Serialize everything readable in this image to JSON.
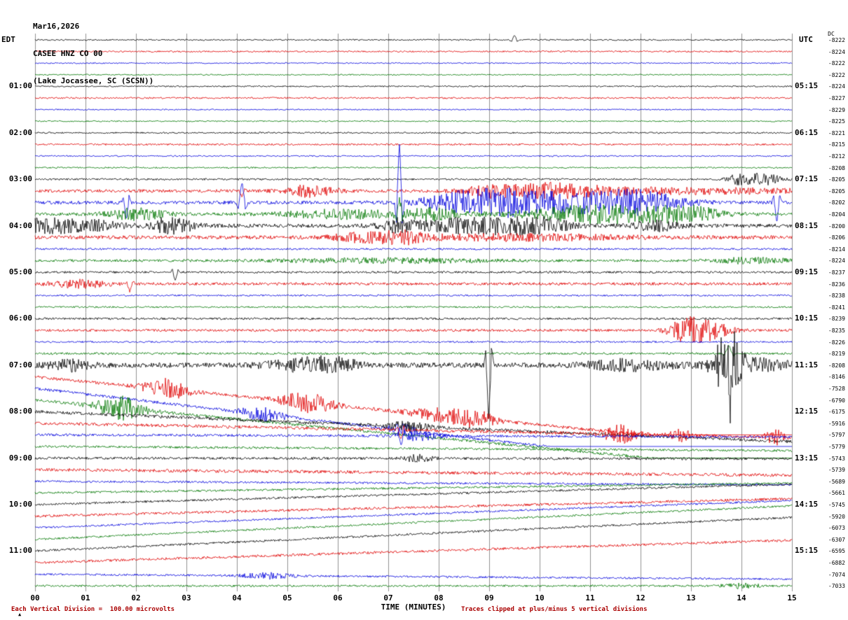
{
  "title": {
    "date": "Mar16,2026",
    "station": "CASEE HNZ CO 00",
    "location": "(Lake Jocassee, SC (SCSN))"
  },
  "axes": {
    "left_tz": "EDT",
    "right_tz": "UTC",
    "dc_header": "DC",
    "x_label": "TIME (MINUTES)",
    "x_ticks": [
      "00",
      "01",
      "02",
      "03",
      "04",
      "05",
      "06",
      "07",
      "08",
      "09",
      "10",
      "11",
      "12",
      "13",
      "14",
      "15"
    ]
  },
  "footer": {
    "left_note": "Each Vertical Division =  100.00 microvolts",
    "right_note": "Traces clipped at plus/minus 5 vertical divisions",
    "mark": "▲"
  },
  "colors": {
    "black": "#000000",
    "red": "#e00000",
    "blue": "#0000dd",
    "green": "#007700",
    "grid": "#909090",
    "note": "#aa0000"
  },
  "chart_data": {
    "type": "line",
    "title": "CASEE HNZ CO 00 (Lake Jocassee, SC (SCSN)) Mar16,2026",
    "xlabel": "TIME (MINUTES)",
    "x_range": [
      0,
      15
    ],
    "minutes_per_row": 15,
    "microvolts_per_division": 100,
    "clip_divisions": 5,
    "left_timezone": "EDT",
    "right_timezone": "UTC",
    "description": "Helicorder seismogram: 48 fifteen-minute traces (00:00-12:00 EDT), color cycle black/red/blue/green, DC offset per row at right. noise=trace fuzz amplitude px, drift=[start,end] px baseline ramp (down positive), events: s=burst (noisy envelope) or spike (impulse), m=minute, w=width min, a=amplitude px (positive down).",
    "rows": [
      {
        "t": "00:00",
        "color": "black",
        "dc": -8222,
        "noise": 1.0,
        "events": [
          {
            "m": 9.5,
            "w": 0.05,
            "a": -6,
            "s": "spike"
          }
        ]
      },
      {
        "t": "00:15",
        "color": "red",
        "dc": -8224,
        "noise": 1.1
      },
      {
        "t": "00:30",
        "color": "blue",
        "dc": -8222,
        "noise": 0.9
      },
      {
        "t": "00:45",
        "color": "green",
        "dc": -8222,
        "noise": 0.9
      },
      {
        "t": "01:00",
        "color": "black",
        "dc": -8224,
        "noise": 1.0,
        "left": "01:00",
        "right": "05:15"
      },
      {
        "t": "01:15",
        "color": "red",
        "dc": -8227,
        "noise": 1.2
      },
      {
        "t": "01:30",
        "color": "blue",
        "dc": -8229,
        "noise": 0.9
      },
      {
        "t": "01:45",
        "color": "green",
        "dc": -8225,
        "noise": 0.9
      },
      {
        "t": "02:00",
        "color": "black",
        "dc": -8221,
        "noise": 1.1,
        "left": "02:00",
        "right": "06:15"
      },
      {
        "t": "02:15",
        "color": "red",
        "dc": -8215,
        "noise": 1.3
      },
      {
        "t": "02:30",
        "color": "blue",
        "dc": -8212,
        "noise": 1.0
      },
      {
        "t": "02:45",
        "color": "green",
        "dc": -8208,
        "noise": 1.0
      },
      {
        "t": "03:00",
        "color": "black",
        "dc": -8205,
        "noise": 1.3,
        "left": "03:00",
        "right": "07:15",
        "events": [
          {
            "m": 13.9,
            "w": 0.15,
            "a": 6,
            "s": "burst"
          },
          {
            "m": 14.4,
            "w": 0.25,
            "a": 9,
            "s": "burst"
          }
        ]
      },
      {
        "t": "03:15",
        "color": "red",
        "dc": -8205,
        "noise": 2.2,
        "events": [
          {
            "m": 4.1,
            "w": 0.05,
            "a": 10,
            "s": "spike"
          },
          {
            "m": 5.45,
            "w": 0.35,
            "a": 8,
            "s": "burst"
          },
          {
            "m": 9.0,
            "w": 0.3,
            "a": 6,
            "s": "burst"
          },
          {
            "m": 10.2,
            "w": 0.7,
            "a": 9,
            "s": "burst"
          },
          {
            "m": 12.5,
            "w": 2.0,
            "a": 4,
            "s": "burst"
          }
        ]
      },
      {
        "t": "03:30",
        "color": "blue",
        "dc": -8202,
        "noise": 2.5,
        "events": [
          {
            "m": 1.81,
            "w": 0.05,
            "a": 25,
            "s": "spike"
          },
          {
            "m": 4.1,
            "w": 0.06,
            "a": -30,
            "s": "spike"
          },
          {
            "m": 7.22,
            "w": 0.05,
            "a": -90,
            "s": "spike"
          },
          {
            "m": 8.4,
            "w": 0.5,
            "a": 12,
            "s": "burst"
          },
          {
            "m": 9.3,
            "w": 0.4,
            "a": 10,
            "s": "burst"
          },
          {
            "m": 10.6,
            "w": 1.2,
            "a": 14,
            "s": "burst"
          },
          {
            "m": 12.0,
            "w": 0.5,
            "a": 10,
            "s": "burst"
          },
          {
            "m": 14.7,
            "w": 0.05,
            "a": 30,
            "s": "spike"
          }
        ]
      },
      {
        "t": "03:45",
        "color": "green",
        "dc": -8204,
        "noise": 2.2,
        "events": [
          {
            "m": 2.0,
            "w": 0.4,
            "a": 8,
            "s": "burst"
          },
          {
            "m": 6.1,
            "w": 0.8,
            "a": 6,
            "s": "burst"
          },
          {
            "m": 7.22,
            "w": 0.05,
            "a": -25,
            "s": "spike"
          },
          {
            "m": 7.9,
            "w": 0.4,
            "a": 8,
            "s": "burst"
          },
          {
            "m": 11.3,
            "w": 1.1,
            "a": 13,
            "s": "burst"
          },
          {
            "m": 13.0,
            "w": 0.4,
            "a": 8,
            "s": "burst"
          }
        ]
      },
      {
        "t": "04:00",
        "color": "black",
        "dc": -8200,
        "noise": 2.8,
        "left": "04:00",
        "right": "08:15",
        "events": [
          {
            "m": 0.3,
            "w": 0.5,
            "a": 10,
            "s": "burst"
          },
          {
            "m": 1.3,
            "w": 0.3,
            "a": 6,
            "s": "burst"
          },
          {
            "m": 2.7,
            "w": 0.3,
            "a": 12,
            "s": "burst"
          },
          {
            "m": 7.2,
            "w": 0.2,
            "a": 8,
            "s": "burst"
          },
          {
            "m": 8.8,
            "w": 0.9,
            "a": 11,
            "s": "burst"
          },
          {
            "m": 10.0,
            "w": 0.4,
            "a": 8,
            "s": "burst"
          },
          {
            "m": 12.3,
            "w": 0.3,
            "a": 7,
            "s": "burst"
          }
        ]
      },
      {
        "t": "04:15",
        "color": "red",
        "dc": -8206,
        "noise": 2.6,
        "events": [
          {
            "m": 6.5,
            "w": 0.4,
            "a": 6,
            "s": "burst"
          },
          {
            "m": 7.3,
            "w": 0.3,
            "a": 7,
            "s": "burst"
          },
          {
            "m": 9.5,
            "w": 1.5,
            "a": 4,
            "s": "burst"
          }
        ]
      },
      {
        "t": "04:30",
        "color": "blue",
        "dc": -8214,
        "noise": 1.4
      },
      {
        "t": "04:45",
        "color": "green",
        "dc": -8224,
        "noise": 1.8,
        "events": [
          {
            "m": 7.0,
            "w": 1.5,
            "a": 3,
            "s": "burst"
          },
          {
            "m": 14.2,
            "w": 0.5,
            "a": 4,
            "s": "burst"
          }
        ]
      },
      {
        "t": "05:00",
        "color": "black",
        "dc": -8237,
        "noise": 1.5,
        "left": "05:00",
        "right": "09:15",
        "events": [
          {
            "m": 2.78,
            "w": 0.05,
            "a": 13,
            "s": "spike"
          }
        ]
      },
      {
        "t": "05:15",
        "color": "red",
        "dc": -8236,
        "noise": 2.0,
        "events": [
          {
            "m": 0.9,
            "w": 0.4,
            "a": 5,
            "s": "burst"
          },
          {
            "m": 1.88,
            "w": 0.05,
            "a": 11,
            "s": "spike"
          }
        ]
      },
      {
        "t": "05:30",
        "color": "blue",
        "dc": -8238,
        "noise": 1.2
      },
      {
        "t": "05:45",
        "color": "green",
        "dc": -8241,
        "noise": 1.2
      },
      {
        "t": "06:00",
        "color": "black",
        "dc": -8239,
        "noise": 1.5,
        "left": "06:00",
        "right": "10:15"
      },
      {
        "t": "06:15",
        "color": "red",
        "dc": -8235,
        "noise": 1.8,
        "events": [
          {
            "m": 12.9,
            "w": 0.25,
            "a": 14,
            "s": "burst"
          },
          {
            "m": 13.35,
            "w": 0.3,
            "a": 12,
            "s": "burst"
          }
        ]
      },
      {
        "t": "06:30",
        "color": "blue",
        "dc": -8226,
        "noise": 1.2
      },
      {
        "t": "06:45",
        "color": "green",
        "dc": -8219,
        "noise": 1.6,
        "events": [
          {
            "m": 13.75,
            "w": 0.07,
            "a": -12,
            "s": "spike"
          }
        ]
      },
      {
        "t": "07:00",
        "color": "black",
        "dc": -8208,
        "noise": 3.5,
        "left": "07:00",
        "right": "11:15",
        "events": [
          {
            "m": 0.7,
            "w": 0.3,
            "a": 7,
            "s": "burst"
          },
          {
            "m": 5.3,
            "w": 0.5,
            "a": 9,
            "s": "burst"
          },
          {
            "m": 6.0,
            "w": 0.3,
            "a": 7,
            "s": "burst"
          },
          {
            "m": 8.99,
            "w": 0.05,
            "a": 80,
            "s": "spike"
          },
          {
            "m": 11.8,
            "w": 0.6,
            "a": 7,
            "s": "burst"
          },
          {
            "m": 13.72,
            "w": 0.18,
            "a": 45,
            "s": "burst"
          },
          {
            "m": 13.78,
            "w": 0.05,
            "a": 55,
            "s": "spike"
          },
          {
            "m": 14.3,
            "w": 0.6,
            "a": 8,
            "s": "burst"
          }
        ]
      },
      {
        "t": "07:15",
        "color": "red",
        "dc": -8146,
        "noise": 2.2,
        "drift": [
          0,
          103
        ],
        "events": [
          {
            "m": 2.6,
            "w": 0.3,
            "a": 14,
            "s": "burst"
          },
          {
            "m": 5.4,
            "w": 0.35,
            "a": 14,
            "s": "burst"
          },
          {
            "m": 8.2,
            "w": 0.5,
            "a": 10,
            "s": "burst"
          },
          {
            "m": 8.8,
            "w": 0.2,
            "a": 8,
            "s": "burst"
          }
        ]
      },
      {
        "t": "07:30",
        "color": "blue",
        "dc": -7528,
        "noise": 2.0,
        "drift": [
          0,
          123
        ],
        "events": [
          {
            "m": 4.5,
            "w": 0.3,
            "a": 9,
            "s": "burst"
          },
          {
            "m": 7.3,
            "w": 0.2,
            "a": 8,
            "s": "burst"
          }
        ]
      },
      {
        "t": "07:45",
        "color": "green",
        "dc": -6790,
        "noise": 2.0,
        "drift": [
          0,
          102
        ],
        "events": [
          {
            "m": 1.7,
            "w": 0.35,
            "a": 16,
            "s": "burst"
          }
        ]
      },
      {
        "t": "08:00",
        "color": "black",
        "dc": -6175,
        "noise": 2.2,
        "left": "08:00",
        "right": "12:15",
        "drift": [
          0,
          43
        ],
        "events": [
          {
            "m": 7.4,
            "w": 0.3,
            "a": 6,
            "s": "burst"
          }
        ]
      },
      {
        "t": "08:15",
        "color": "red",
        "dc": -5916,
        "noise": 2.2,
        "drift": [
          0,
          20
        ],
        "events": [
          {
            "m": 7.25,
            "w": 0.05,
            "a": 14,
            "s": "spike"
          },
          {
            "m": 11.6,
            "w": 0.25,
            "a": 12,
            "s": "burst"
          },
          {
            "m": 12.8,
            "w": 0.15,
            "a": 8,
            "s": "burst"
          },
          {
            "m": 14.65,
            "w": 0.12,
            "a": 12,
            "s": "burst"
          }
        ]
      },
      {
        "t": "08:30",
        "color": "blue",
        "dc": -5797,
        "noise": 1.8,
        "drift": [
          0,
          3
        ],
        "events": [
          {
            "m": 7.25,
            "w": 0.05,
            "a": 12,
            "s": "spike"
          },
          {
            "m": 7.6,
            "w": 0.3,
            "a": 6,
            "s": "burst"
          }
        ]
      },
      {
        "t": "08:45",
        "color": "green",
        "dc": -5779,
        "noise": 1.6,
        "drift": [
          0,
          6
        ]
      },
      {
        "t": "09:00",
        "color": "black",
        "dc": -5743,
        "noise": 1.8,
        "left": "09:00",
        "right": "13:15",
        "drift": [
          0,
          1
        ],
        "events": [
          {
            "m": 7.6,
            "w": 0.2,
            "a": 5,
            "s": "burst"
          }
        ]
      },
      {
        "t": "09:15",
        "color": "red",
        "dc": -5739,
        "noise": 2.2,
        "drift": [
          0,
          8
        ]
      },
      {
        "t": "09:30",
        "color": "blue",
        "dc": -5689,
        "noise": 1.5,
        "drift": [
          0,
          5
        ]
      },
      {
        "t": "09:45",
        "color": "green",
        "dc": -5661,
        "noise": 1.5,
        "drift": [
          0,
          -14
        ]
      },
      {
        "t": "10:00",
        "color": "black",
        "dc": -5745,
        "noise": 1.5,
        "left": "10:00",
        "right": "14:15",
        "drift": [
          0,
          -29
        ]
      },
      {
        "t": "10:15",
        "color": "red",
        "dc": -5920,
        "noise": 1.8,
        "drift": [
          0,
          -25
        ]
      },
      {
        "t": "10:30",
        "color": "blue",
        "dc": -6073,
        "noise": 1.4,
        "drift": [
          0,
          -39
        ]
      },
      {
        "t": "10:45",
        "color": "green",
        "dc": -6307,
        "noise": 1.4,
        "drift": [
          0,
          -48
        ]
      },
      {
        "t": "11:00",
        "color": "black",
        "dc": -6595,
        "noise": 1.5,
        "left": "11:00",
        "right": "15:15",
        "drift": [
          0,
          -48
        ]
      },
      {
        "t": "11:15",
        "color": "red",
        "dc": -6882,
        "noise": 1.8,
        "drift": [
          0,
          -32
        ]
      },
      {
        "t": "11:30",
        "color": "blue",
        "dc": -7074,
        "noise": 1.4,
        "drift": [
          0,
          7
        ],
        "events": [
          {
            "m": 4.6,
            "w": 0.35,
            "a": 4,
            "s": "burst"
          }
        ]
      },
      {
        "t": "11:45",
        "color": "green",
        "dc": -7033,
        "noise": 1.4,
        "events": [
          {
            "m": 14.0,
            "w": 0.3,
            "a": 3,
            "s": "burst"
          }
        ]
      }
    ]
  }
}
